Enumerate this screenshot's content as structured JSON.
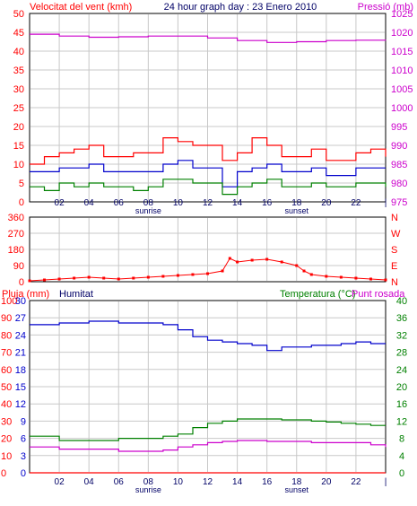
{
  "header": {
    "left_title": "Velocitat del vent (kmh)",
    "center_title": "24 hour graph day : 23 Enero 2010",
    "right_title": "Pressió (mb)"
  },
  "colors": {
    "red": "#ff0000",
    "blue": "#0000cc",
    "green": "#008000",
    "magenta": "#cc00cc",
    "grid": "#c8c8c8",
    "axis": "#000000"
  },
  "x_axis": {
    "tick_labels": [
      "02",
      "04",
      "06",
      "08",
      "10",
      "12",
      "14",
      "16",
      "18",
      "20",
      "22",
      "|"
    ],
    "tick_hours": [
      2,
      4,
      6,
      8,
      10,
      12,
      14,
      16,
      18,
      20,
      22,
      24
    ],
    "sunrise_label": "sunrise",
    "sunset_label": "sunset",
    "sunrise_hour": 8,
    "sunset_hour": 18
  },
  "chart_data": [
    {
      "type": "line",
      "panel": "wind",
      "ylabel_left": "Velocitat del vent (kmh)",
      "ylabel_right": "Pressió (mb)",
      "left_ticks": [
        "0",
        "5",
        "10",
        "15",
        "20",
        "25",
        "30",
        "35",
        "40",
        "45",
        "50"
      ],
      "right_ticks": [
        "975",
        "980",
        "985",
        "990",
        "995",
        "1000",
        "1005",
        "1010",
        "1015",
        "1020",
        "1025"
      ],
      "ylim_left": [
        0,
        50
      ],
      "ylim_right": [
        975,
        1025
      ],
      "x_unit": "hour",
      "series": [
        {
          "axis": "left",
          "color": "red",
          "x": [
            0,
            1,
            2,
            3,
            4,
            5,
            6,
            7,
            8,
            9,
            10,
            11,
            12,
            13,
            14,
            15,
            16,
            17,
            18,
            19,
            20,
            21,
            22,
            23,
            24
          ],
          "values": [
            10,
            12,
            13,
            14,
            15,
            12,
            12,
            13,
            13,
            17,
            16,
            15,
            15,
            11,
            13,
            17,
            15,
            12,
            12,
            14,
            11,
            11,
            13,
            14,
            12
          ]
        },
        {
          "axis": "left",
          "color": "blue",
          "x": [
            0,
            1,
            2,
            3,
            4,
            5,
            6,
            7,
            8,
            9,
            10,
            11,
            12,
            13,
            14,
            15,
            16,
            17,
            18,
            19,
            20,
            21,
            22,
            23,
            24
          ],
          "values": [
            8,
            8,
            9,
            9,
            10,
            8,
            8,
            8,
            8,
            10,
            11,
            9,
            9,
            4,
            8,
            9,
            10,
            8,
            8,
            9,
            7,
            7,
            9,
            9,
            9
          ]
        },
        {
          "axis": "left",
          "color": "green",
          "x": [
            0,
            1,
            2,
            3,
            4,
            5,
            6,
            7,
            8,
            9,
            10,
            11,
            12,
            13,
            14,
            15,
            16,
            17,
            18,
            19,
            20,
            21,
            22,
            23,
            24
          ],
          "values": [
            4,
            3,
            5,
            4,
            5,
            4,
            4,
            3,
            4,
            6,
            6,
            5,
            5,
            2,
            4,
            5,
            6,
            4,
            4,
            5,
            4,
            4,
            5,
            5,
            4
          ]
        },
        {
          "axis": "right",
          "color": "magenta",
          "x": [
            0,
            2,
            4,
            6,
            8,
            10,
            12,
            14,
            16,
            18,
            20,
            22,
            24
          ],
          "values": [
            1019.5,
            1019,
            1018.7,
            1018.8,
            1019,
            1019,
            1018.5,
            1017.8,
            1017.3,
            1017.5,
            1017.8,
            1017.9,
            1017.8
          ]
        }
      ]
    },
    {
      "type": "scatter",
      "panel": "direction",
      "left_ticks": [
        "0",
        "90",
        "180",
        "270",
        "360"
      ],
      "right_ticks": [
        "N",
        "E",
        "S",
        "W",
        "N"
      ],
      "ylim": [
        0,
        360
      ],
      "x_unit": "hour",
      "series": [
        {
          "color": "red",
          "x": [
            0,
            1,
            2,
            3,
            4,
            5,
            6,
            7,
            8,
            9,
            10,
            11,
            12,
            13,
            13.5,
            14,
            15,
            16,
            17,
            18,
            18.5,
            19,
            20,
            21,
            22,
            23,
            24
          ],
          "values": [
            5,
            10,
            15,
            20,
            25,
            20,
            15,
            20,
            25,
            30,
            35,
            40,
            45,
            60,
            130,
            110,
            120,
            125,
            110,
            90,
            60,
            40,
            30,
            25,
            20,
            15,
            10
          ]
        }
      ]
    },
    {
      "type": "line",
      "panel": "humidity-temperature",
      "header_left_1": "Pluja (mm)",
      "header_left_2": "Humitat",
      "header_right_1": "Temperatura (°C)",
      "header_right_2": "Punt rosada",
      "rain_ticks": [
        "0",
        "10",
        "20",
        "30",
        "40",
        "50",
        "60",
        "70",
        "80",
        "90",
        "100"
      ],
      "humidity_ticks": [
        "0",
        "3",
        "6",
        "9",
        "12",
        "15",
        "18",
        "21",
        "24",
        "27",
        "30"
      ],
      "temp_ticks": [
        "0",
        "4",
        "8",
        "12",
        "16",
        "20",
        "24",
        "28",
        "32",
        "36",
        "40"
      ],
      "ylim_rain": [
        0,
        100
      ],
      "ylim_temp": [
        0,
        40
      ],
      "x_unit": "hour",
      "series": [
        {
          "axis": "rain",
          "color": "red",
          "x": [
            0,
            24
          ],
          "values": [
            0,
            0
          ]
        },
        {
          "axis": "rain",
          "color": "blue",
          "x": [
            0,
            2,
            4,
            6,
            8,
            9,
            10,
            11,
            12,
            13,
            14,
            15,
            16,
            17,
            18,
            19,
            20,
            21,
            22,
            23,
            24
          ],
          "values": [
            86,
            87,
            88,
            87,
            87,
            86,
            83,
            79,
            77,
            76,
            75,
            74,
            71,
            73,
            73,
            74,
            74,
            75,
            76,
            75,
            75
          ]
        },
        {
          "axis": "temp",
          "color": "green",
          "x": [
            0,
            2,
            4,
            6,
            8,
            9,
            10,
            11,
            12,
            13,
            14,
            15,
            16,
            17,
            18,
            19,
            20,
            21,
            22,
            23,
            24
          ],
          "values": [
            8.5,
            7.5,
            7.5,
            8,
            8,
            8.5,
            9,
            10.5,
            11.5,
            12,
            12.5,
            12.5,
            12.5,
            12.3,
            12.3,
            12,
            11.8,
            11.5,
            11.3,
            11,
            11
          ]
        },
        {
          "axis": "temp",
          "color": "magenta",
          "x": [
            0,
            2,
            4,
            6,
            8,
            9,
            10,
            11,
            12,
            13,
            14,
            15,
            16,
            17,
            18,
            19,
            20,
            21,
            22,
            23,
            24
          ],
          "values": [
            6,
            5.5,
            5.5,
            5,
            5,
            5.3,
            6,
            6.5,
            7,
            7.3,
            7.5,
            7.5,
            7.3,
            7.3,
            7.3,
            7,
            7,
            7,
            7,
            6.5,
            6
          ]
        }
      ]
    }
  ]
}
